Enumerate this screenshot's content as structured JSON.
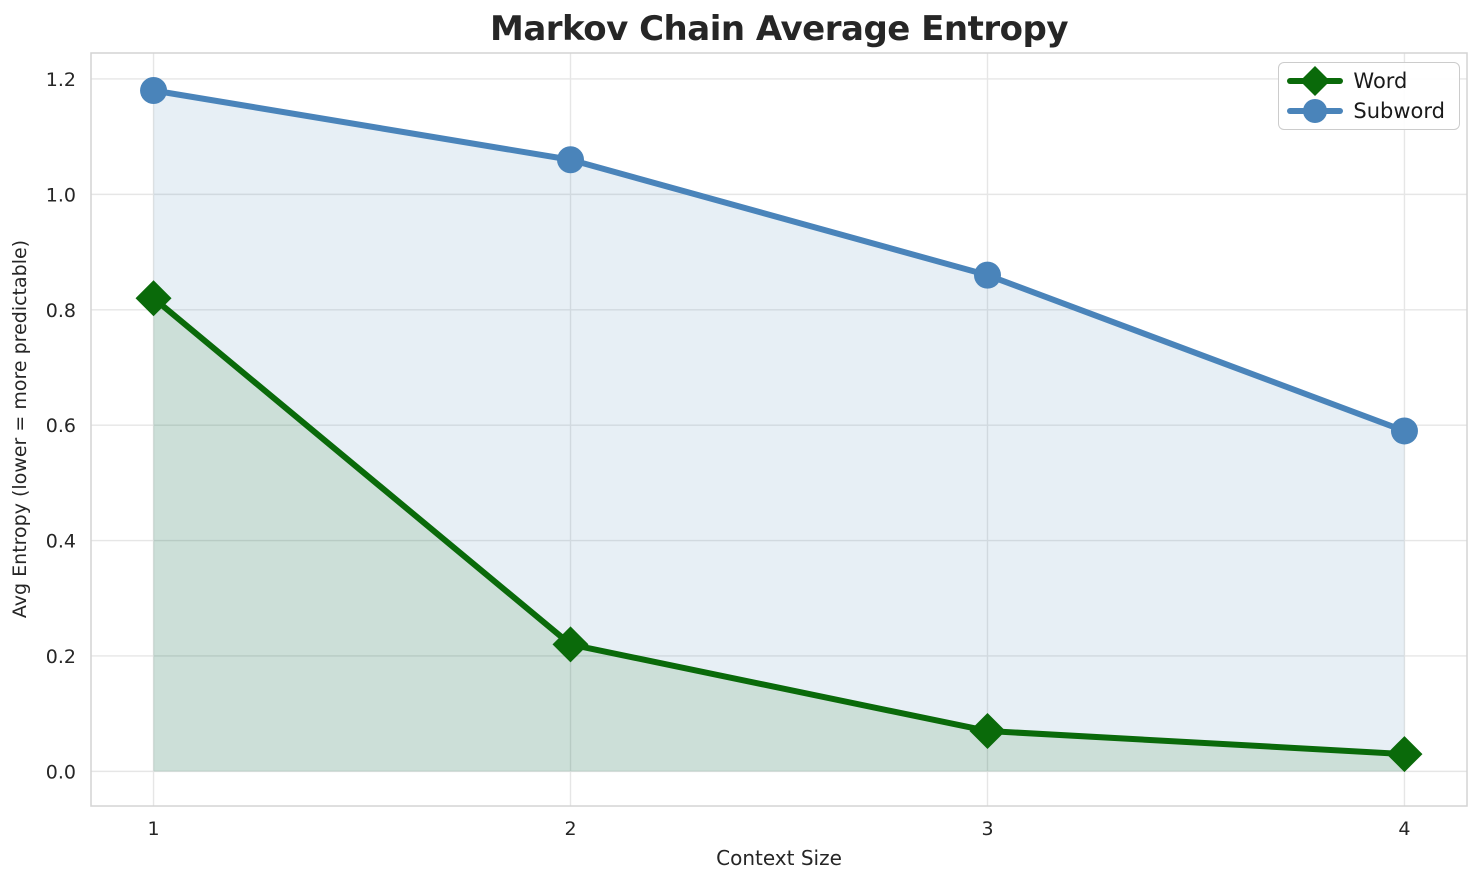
{
  "chart_data": {
    "type": "line",
    "title": "Markov Chain Average Entropy",
    "xlabel": "Context Size",
    "ylabel": "Avg Entropy (lower = more predictable)",
    "x": [
      1,
      2,
      3,
      4
    ],
    "series": [
      {
        "name": "Word",
        "color": "#0a6a0a",
        "fill_color": "rgba(10,106,10,0.12)",
        "marker": "diamond",
        "values": [
          0.82,
          0.22,
          0.07,
          0.03
        ]
      },
      {
        "name": "Subword",
        "color": "#4a84ba",
        "fill_color": "rgba(70,130,180,0.13)",
        "marker": "circle",
        "values": [
          1.18,
          1.06,
          0.86,
          0.59
        ]
      }
    ],
    "fill_to_zero": true,
    "xtick_labels": [
      "1",
      "2",
      "3",
      "4"
    ],
    "ytick_labels": [
      "0.0",
      "0.2",
      "0.4",
      "0.6",
      "0.8",
      "1.0",
      "1.2"
    ],
    "xlim": [
      0.85,
      4.15
    ],
    "ylim": [
      -0.06,
      1.245
    ],
    "grid": true,
    "legend_position": "upper right"
  },
  "colors": {
    "grid": "#e6e6e6",
    "spine": "#d4d4d4",
    "text": "#262626"
  }
}
